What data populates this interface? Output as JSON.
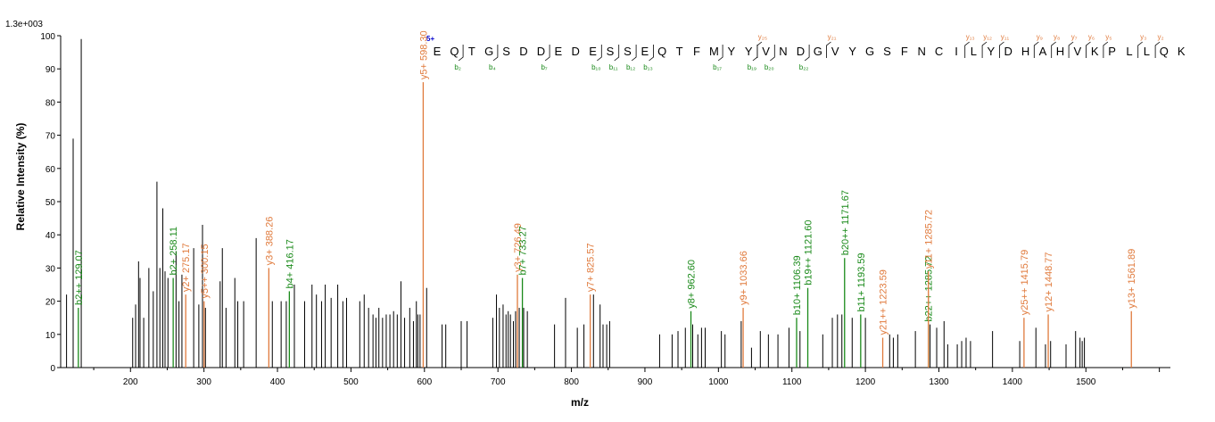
{
  "chart_data": {
    "type": "bar",
    "title": "",
    "scale_label": "1.3e+003",
    "xlabel": "m/z",
    "ylabel": "Relative  Intensity (%)",
    "xlim": [
      105,
      1615
    ],
    "ylim": [
      0,
      100
    ],
    "x_ticks": [
      200,
      300,
      400,
      500,
      600,
      700,
      800,
      900,
      1000,
      1100,
      1200,
      1300,
      1400,
      1500
    ],
    "y_ticks": [
      0,
      10,
      20,
      30,
      40,
      50,
      60,
      70,
      80,
      90,
      100
    ],
    "colors": {
      "b": "#1a8a1a",
      "y": "#e07a3c",
      "unassigned": "#000000",
      "charge": "#0000cc"
    },
    "charge_label": "5+",
    "sequence": [
      "E",
      "Q",
      "T",
      "G",
      "S",
      "D",
      "D",
      "E",
      "D",
      "E",
      "S",
      "S",
      "E",
      "Q",
      "T",
      "F",
      "M",
      "Y",
      "Y",
      "V",
      "N",
      "D",
      "G",
      "V",
      "Y",
      "G",
      "S",
      "F",
      "N",
      "C",
      "I",
      "L",
      "Y",
      "D",
      "H",
      "A",
      "H",
      "V",
      "K",
      "P",
      "L",
      "L",
      "Q",
      "K"
    ],
    "b_marks": [
      {
        "after": 2,
        "label": "b₂"
      },
      {
        "after": 4,
        "label": "b₄"
      },
      {
        "after": 7,
        "label": "b₇"
      },
      {
        "after": 10,
        "label": "b₁₀"
      },
      {
        "after": 11,
        "label": "b₁₁"
      },
      {
        "after": 12,
        "label": "b₁₂"
      },
      {
        "after": 13,
        "label": "b₁₃"
      },
      {
        "after": 17,
        "label": "b₁₇"
      },
      {
        "after": 19,
        "label": "b₁₉"
      },
      {
        "after": 20,
        "label": "b₂₀"
      },
      {
        "after": 22,
        "label": "b₂₂"
      }
    ],
    "y_marks": [
      {
        "after": 19,
        "label": "y₂₅"
      },
      {
        "after": 23,
        "label": "y₂₁"
      },
      {
        "after": 31,
        "label": "y₁₃"
      },
      {
        "after": 32,
        "label": "y₁₂"
      },
      {
        "after": 33,
        "label": "y₁₁"
      },
      {
        "after": 35,
        "label": "y₉"
      },
      {
        "after": 36,
        "label": "y₈"
      },
      {
        "after": 37,
        "label": "y₇"
      },
      {
        "after": 38,
        "label": "y₆"
      },
      {
        "after": 39,
        "label": "y₅"
      },
      {
        "after": 41,
        "label": "y₃"
      },
      {
        "after": 42,
        "label": "y₂"
      }
    ],
    "annotated_peaks": [
      {
        "x": 129.07,
        "y": 18,
        "type": "b",
        "label": "b2++ 129.07"
      },
      {
        "x": 258.11,
        "y": 27,
        "type": "b",
        "label": "b2+ 258.11"
      },
      {
        "x": 275.17,
        "y": 22,
        "type": "y",
        "label": "y2+ 275.17"
      },
      {
        "x": 300.15,
        "y": 20,
        "type": "y",
        "label": "y5++ 300.15"
      },
      {
        "x": 388.26,
        "y": 30,
        "type": "y",
        "label": "y3+ 388.26"
      },
      {
        "x": 416.17,
        "y": 23,
        "type": "b",
        "label": "b4+ 416.17"
      },
      {
        "x": 598.3,
        "y": 86,
        "type": "y",
        "label": "y5+ 598.30"
      },
      {
        "x": 726.49,
        "y": 28,
        "type": "y",
        "label": "y3+ 726.49"
      },
      {
        "x": 733.27,
        "y": 27,
        "type": "b",
        "label": "b7+ 733.27"
      },
      {
        "x": 825.57,
        "y": 22,
        "type": "y",
        "label": "y7+ 825.57"
      },
      {
        "x": 962.6,
        "y": 17,
        "type": "b",
        "label": "y8+ 962.60"
      },
      {
        "x": 1033.66,
        "y": 18,
        "type": "y",
        "label": "y9+ 1033.66"
      },
      {
        "x": 1106.39,
        "y": 15,
        "type": "b",
        "label": "b10+ 1106.39"
      },
      {
        "x": 1121.6,
        "y": 24,
        "type": "b",
        "label": "b19++ 1121.60"
      },
      {
        "x": 1171.67,
        "y": 33,
        "type": "b",
        "label": "b20++ 1171.67"
      },
      {
        "x": 1193.59,
        "y": 16,
        "type": "b",
        "label": "b11+ 1193.59"
      },
      {
        "x": 1223.59,
        "y": 9,
        "type": "y",
        "label": "y21++ 1223.59"
      },
      {
        "x": 1285.72,
        "y": 13,
        "type": "b",
        "label": "b22++ 1285.72"
      },
      {
        "x": 1285.72,
        "y": 29,
        "type": "y",
        "label": "y11+ 1285.72"
      },
      {
        "x": 1415.79,
        "y": 15,
        "type": "y",
        "label": "y25++ 1415.79"
      },
      {
        "x": 1448.77,
        "y": 16,
        "type": "y",
        "label": "y12+ 1448.77"
      },
      {
        "x": 1561.89,
        "y": 17,
        "type": "y",
        "label": "y13+ 1561.89"
      }
    ],
    "peaks": [
      [
        113,
        22
      ],
      [
        122,
        69
      ],
      [
        133,
        99
      ],
      [
        203,
        15
      ],
      [
        207,
        19
      ],
      [
        211,
        32
      ],
      [
        213,
        27
      ],
      [
        218,
        15
      ],
      [
        225,
        30
      ],
      [
        231,
        23
      ],
      [
        236,
        56
      ],
      [
        240,
        30
      ],
      [
        244,
        48
      ],
      [
        247,
        29
      ],
      [
        251,
        27
      ],
      [
        262,
        35
      ],
      [
        266,
        20
      ],
      [
        270,
        28
      ],
      [
        286,
        36
      ],
      [
        293,
        19
      ],
      [
        298,
        43
      ],
      [
        302,
        18
      ],
      [
        322,
        26
      ],
      [
        325,
        36
      ],
      [
        330,
        18
      ],
      [
        342,
        27
      ],
      [
        346,
        20
      ],
      [
        354,
        20
      ],
      [
        371,
        39
      ],
      [
        393,
        20
      ],
      [
        405,
        20
      ],
      [
        412,
        20
      ],
      [
        423,
        25
      ],
      [
        437,
        20
      ],
      [
        447,
        25
      ],
      [
        453,
        22
      ],
      [
        460,
        20
      ],
      [
        465,
        25
      ],
      [
        473,
        21
      ],
      [
        482,
        25
      ],
      [
        489,
        20
      ],
      [
        494,
        21
      ],
      [
        512,
        20
      ],
      [
        518,
        22
      ],
      [
        524,
        18
      ],
      [
        530,
        16
      ],
      [
        534,
        15
      ],
      [
        538,
        18
      ],
      [
        543,
        15
      ],
      [
        548,
        16
      ],
      [
        553,
        16
      ],
      [
        558,
        17
      ],
      [
        563,
        16
      ],
      [
        568,
        26
      ],
      [
        573,
        15
      ],
      [
        580,
        18
      ],
      [
        585,
        14
      ],
      [
        589,
        20
      ],
      [
        591,
        16
      ],
      [
        594,
        16
      ],
      [
        603,
        24
      ],
      [
        624,
        13
      ],
      [
        629,
        13
      ],
      [
        650,
        14
      ],
      [
        658,
        14
      ],
      [
        693,
        15
      ],
      [
        698,
        22
      ],
      [
        702,
        18
      ],
      [
        707,
        19
      ],
      [
        711,
        16
      ],
      [
        714,
        17
      ],
      [
        717,
        16
      ],
      [
        721,
        14
      ],
      [
        724,
        17
      ],
      [
        729,
        18
      ],
      [
        735,
        18
      ],
      [
        740,
        17
      ],
      [
        777,
        13
      ],
      [
        792,
        21
      ],
      [
        808,
        12
      ],
      [
        817,
        13
      ],
      [
        830,
        22
      ],
      [
        839,
        19
      ],
      [
        843,
        13
      ],
      [
        848,
        13
      ],
      [
        852,
        14
      ],
      [
        920,
        10
      ],
      [
        937,
        10
      ],
      [
        945,
        11
      ],
      [
        955,
        12
      ],
      [
        965,
        13
      ],
      [
        972,
        10
      ],
      [
        977,
        12
      ],
      [
        982,
        12
      ],
      [
        1004,
        11
      ],
      [
        1009,
        10
      ],
      [
        1031,
        14
      ],
      [
        1045,
        6
      ],
      [
        1057,
        11
      ],
      [
        1068,
        10
      ],
      [
        1081,
        10
      ],
      [
        1096,
        12
      ],
      [
        1111,
        11
      ],
      [
        1142,
        10
      ],
      [
        1155,
        15
      ],
      [
        1162,
        16
      ],
      [
        1168,
        16
      ],
      [
        1182,
        15
      ],
      [
        1200,
        15
      ],
      [
        1233,
        10
      ],
      [
        1238,
        9
      ],
      [
        1244,
        10
      ],
      [
        1268,
        11
      ],
      [
        1288,
        13
      ],
      [
        1297,
        12
      ],
      [
        1307,
        14
      ],
      [
        1312,
        7
      ],
      [
        1325,
        7
      ],
      [
        1331,
        8
      ],
      [
        1337,
        9
      ],
      [
        1343,
        8
      ],
      [
        1373,
        11
      ],
      [
        1410,
        8
      ],
      [
        1432,
        12
      ],
      [
        1445,
        7
      ],
      [
        1452,
        8
      ],
      [
        1473,
        7
      ],
      [
        1486,
        11
      ],
      [
        1492,
        9
      ],
      [
        1495,
        8
      ],
      [
        1498,
        9
      ]
    ]
  }
}
